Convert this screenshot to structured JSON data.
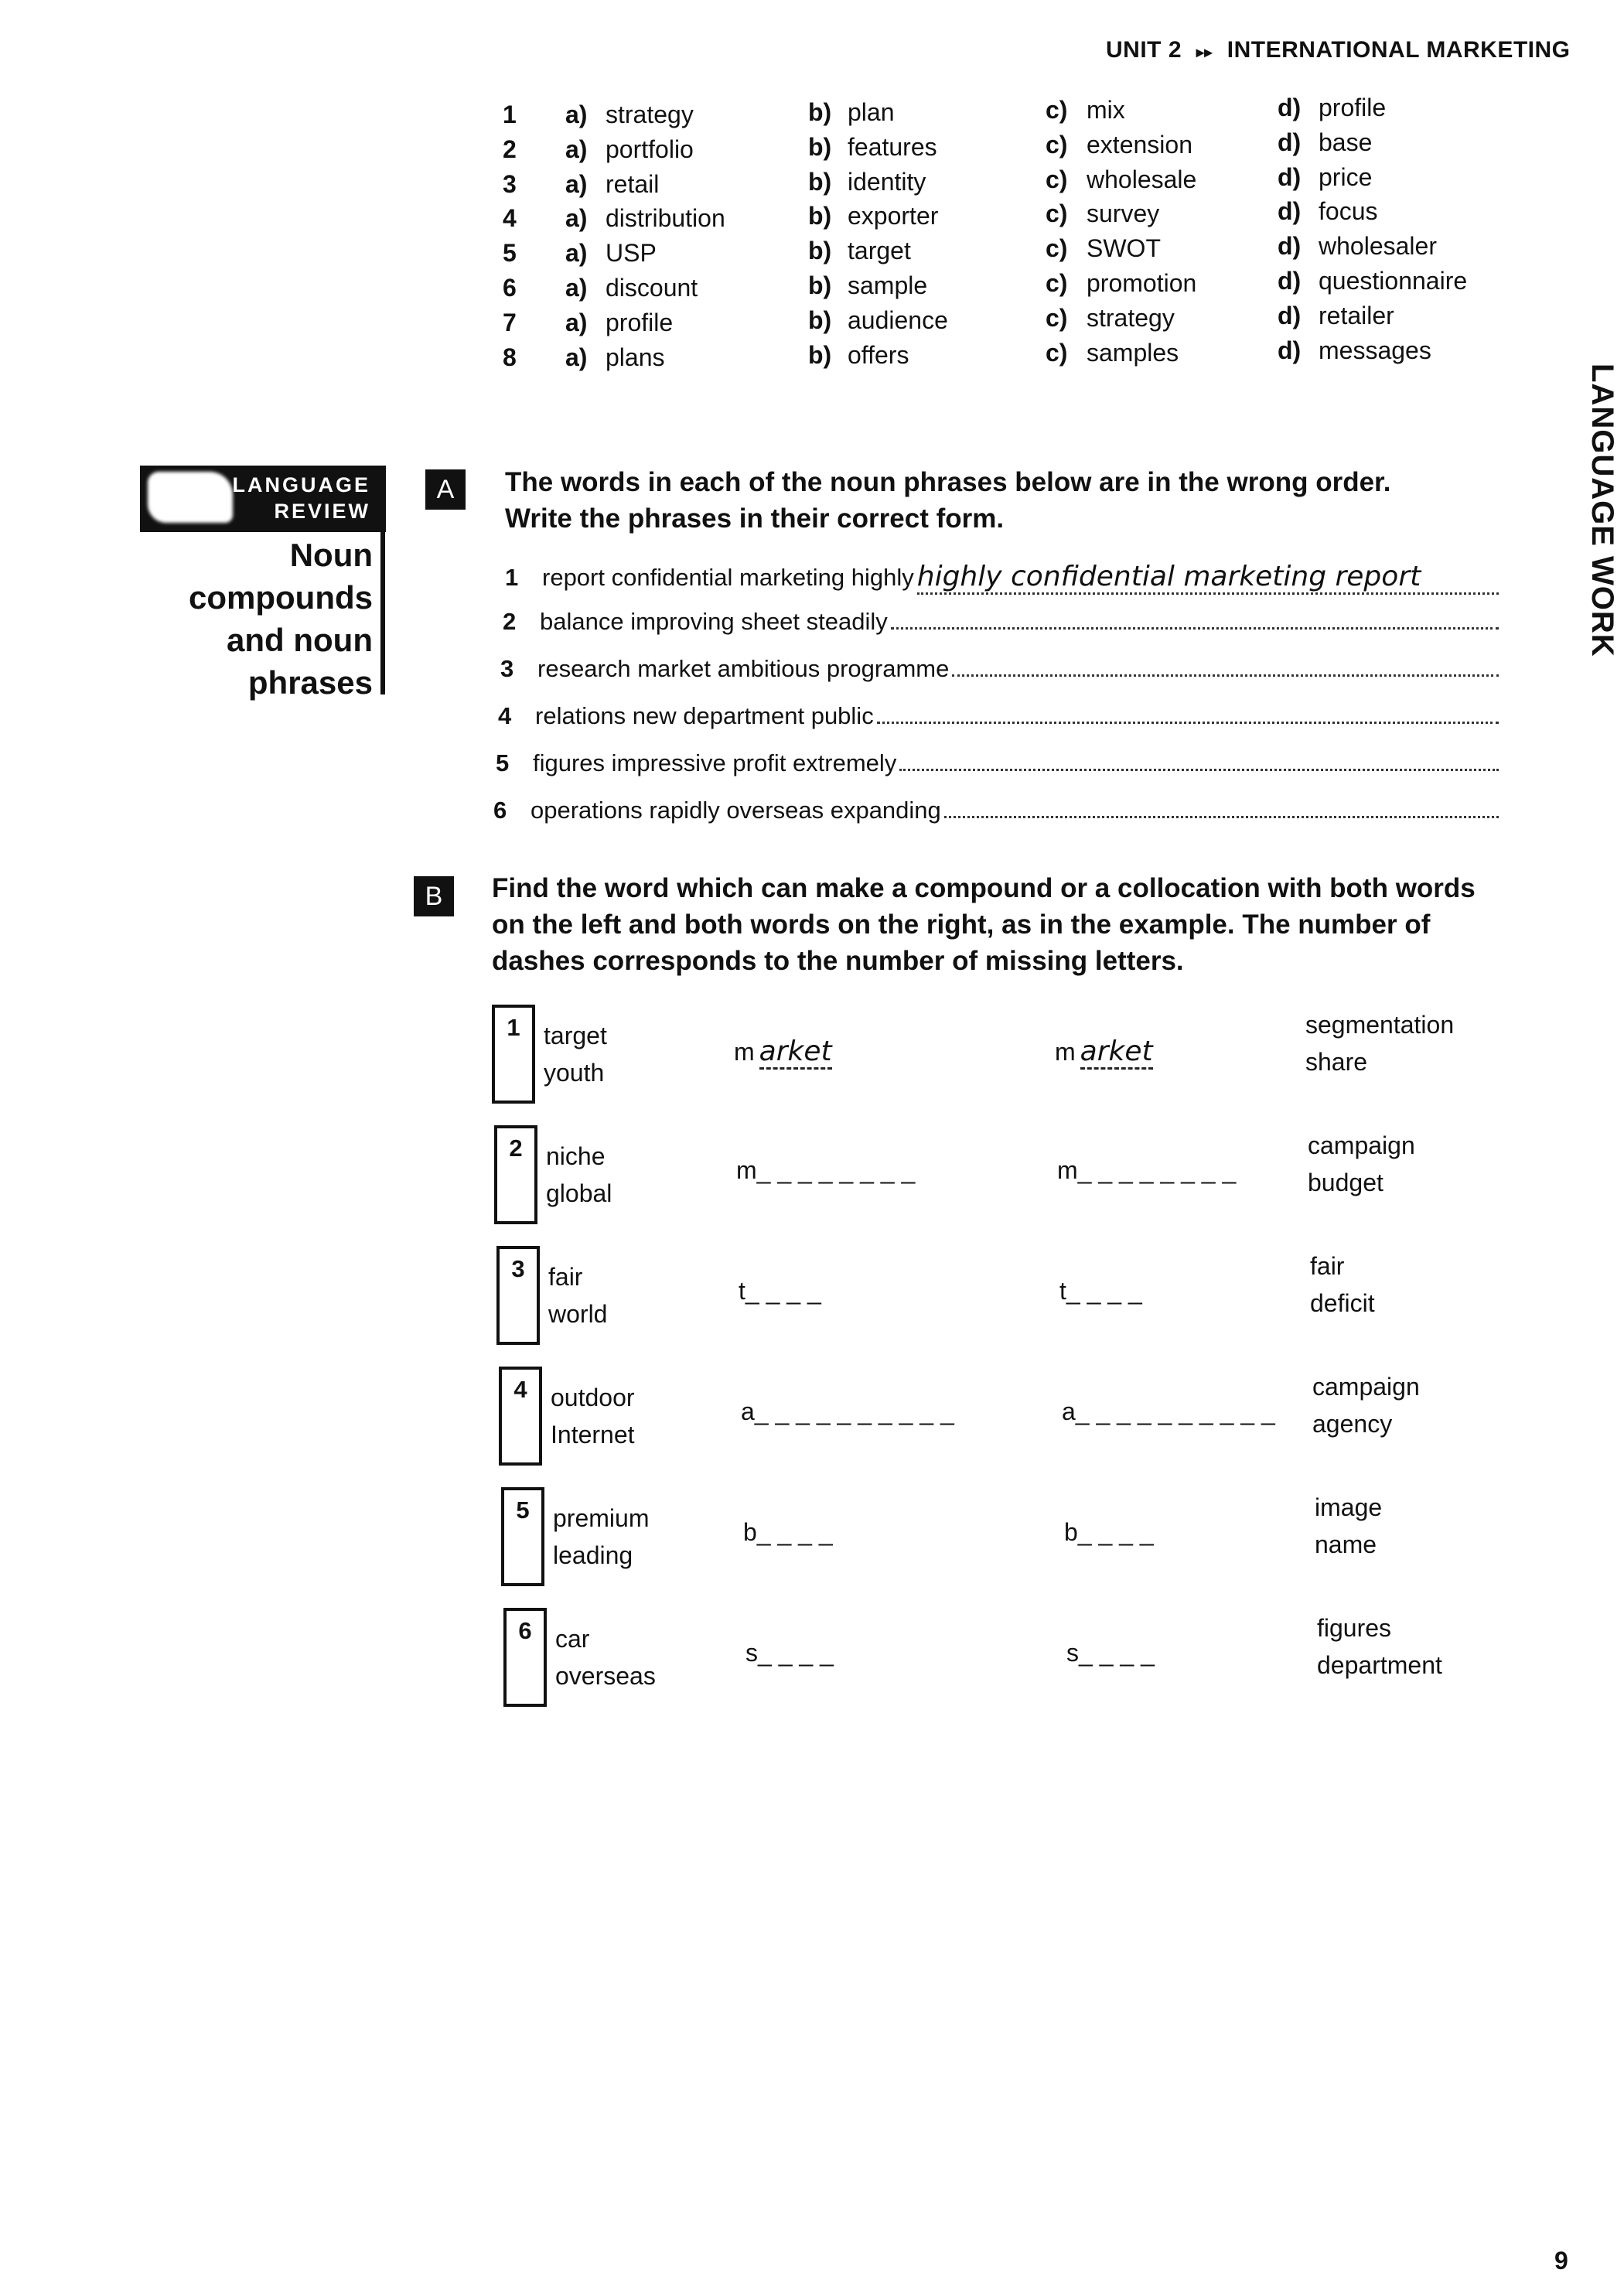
{
  "header": {
    "unit": "UNIT 2",
    "arrows": "▸▸",
    "title": "INTERNATIONAL MARKETING"
  },
  "side_tab": "LANGUAGE WORK",
  "options_table": [
    {
      "n": "1",
      "a": "strategy",
      "b": "plan",
      "c": "mix",
      "d": "profile"
    },
    {
      "n": "2",
      "a": "portfolio",
      "b": "features",
      "c": "extension",
      "d": "base"
    },
    {
      "n": "3",
      "a": "retail",
      "b": "identity",
      "c": "wholesale",
      "d": "price"
    },
    {
      "n": "4",
      "a": "distribution",
      "b": "exporter",
      "c": "survey",
      "d": "focus"
    },
    {
      "n": "5",
      "a": "USP",
      "b": "target",
      "c": "SWOT",
      "d": "wholesaler"
    },
    {
      "n": "6",
      "a": "discount",
      "b": "sample",
      "c": "promotion",
      "d": "questionnaire"
    },
    {
      "n": "7",
      "a": "profile",
      "b": "audience",
      "c": "strategy",
      "d": "retailer"
    },
    {
      "n": "8",
      "a": "plans",
      "b": "offers",
      "c": "samples",
      "d": "messages"
    }
  ],
  "letters": {
    "a": "a)",
    "b": "b)",
    "c": "c)",
    "d": "d)"
  },
  "language_review": {
    "label1": "LANGUAGE",
    "label2": "REVIEW",
    "title": [
      "Noun",
      "compounds",
      "and noun",
      "phrases"
    ]
  },
  "exercise_a": {
    "label": "A",
    "instructions": [
      "The words in each of the noun phrases below are in the wrong order.",
      "Write the phrases in their correct form."
    ],
    "items": [
      {
        "n": "1",
        "text": "report confidential marketing highly",
        "answer": "highly confidential marketing report"
      },
      {
        "n": "2",
        "text": "balance improving sheet steadily",
        "answer": ""
      },
      {
        "n": "3",
        "text": "research market ambitious programme",
        "answer": ""
      },
      {
        "n": "4",
        "text": "relations new department public",
        "answer": ""
      },
      {
        "n": "5",
        "text": "figures impressive profit extremely",
        "answer": ""
      },
      {
        "n": "6",
        "text": "operations rapidly overseas expanding",
        "answer": ""
      }
    ]
  },
  "exercise_b": {
    "label": "B",
    "instructions": [
      "Find the word which can make a compound or a collocation with both words",
      "on the left and both words on the right, as in the example. The number of",
      "dashes corresponds to the number of missing letters."
    ],
    "items": [
      {
        "n": "1",
        "left": [
          "target",
          "youth"
        ],
        "first": "m",
        "answer": "arket",
        "blank": "",
        "right": [
          "segmentation",
          "share"
        ]
      },
      {
        "n": "2",
        "left": [
          "niche",
          "global"
        ],
        "first": "m",
        "answer": "",
        "blank": "_ _ _ _ _ _ _ _",
        "right": [
          "campaign",
          "budget"
        ]
      },
      {
        "n": "3",
        "left": [
          "fair",
          "world"
        ],
        "first": "t",
        "answer": "",
        "blank": "_ _ _ _",
        "right": [
          "fair",
          "deficit"
        ]
      },
      {
        "n": "4",
        "left": [
          "outdoor",
          "Internet"
        ],
        "first": "a",
        "answer": "",
        "blank": "_ _ _ _ _ _ _ _ _ _",
        "right": [
          "campaign",
          "agency"
        ]
      },
      {
        "n": "5",
        "left": [
          "premium",
          "leading"
        ],
        "first": "b",
        "answer": "",
        "blank": "_ _ _ _",
        "right": [
          "image",
          "name"
        ]
      },
      {
        "n": "6",
        "left": [
          "car",
          "overseas"
        ],
        "first": "s",
        "answer": "",
        "blank": "_ _ _ _",
        "right": [
          "figures",
          "department"
        ]
      }
    ]
  },
  "page_number": "9"
}
